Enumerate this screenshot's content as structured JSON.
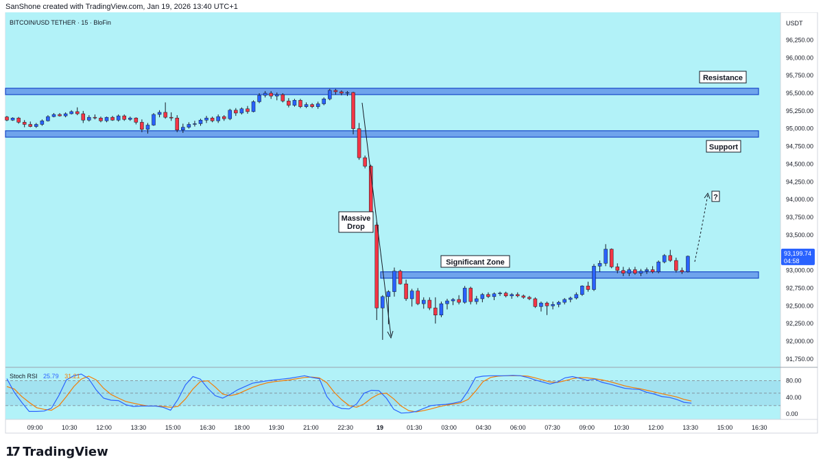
{
  "header_text": "SanShone created with TradingView.com, Jan 19, 2026 13:40 UTC+1",
  "symbol_line": "BITCOIN/USD TETHER · 15 · BloFin",
  "currency": "USDT",
  "footer": {
    "brand": "TradingView"
  },
  "colors": {
    "bg": "#b2f2f8",
    "up": "#2962ff",
    "down": "#f23645",
    "zone_fill": "#6fa4ec",
    "zone_stroke": "#1848c8",
    "rsi_k": "#2962ff",
    "rsi_d": "#f57c00",
    "rsi_band": "#a2e2f0"
  },
  "price_axis": {
    "ticks": [
      "96,250.00",
      "96,000.00",
      "95,750.00",
      "95,500.00",
      "95,250.00",
      "95,000.00",
      "94,750.00",
      "94,500.00",
      "94,250.00",
      "94,000.00",
      "93,750.00",
      "93,500.00",
      "93,250.00",
      "93,000.00",
      "92,750.00",
      "92,500.00",
      "92,250.00",
      "92,000.00",
      "91,750.00"
    ],
    "last_price": "93,199.74",
    "countdown": "04:58"
  },
  "time_axis": {
    "labels": [
      "09:00",
      "10:30",
      "12:00",
      "13:30",
      "15:00",
      "16:30",
      "18:00",
      "19:30",
      "21:00",
      "22:30",
      "19",
      "01:30",
      "03:00",
      "04:30",
      "06:00",
      "07:30",
      "09:00",
      "10:30",
      "12:00",
      "13:30",
      "15:00",
      "16:30"
    ]
  },
  "annotations": {
    "resistance": "Resistance",
    "support": "Support",
    "massive_drop_line1": "Massive",
    "massive_drop_line2": "Drop",
    "significant_zone": "Significant Zone",
    "question": "?"
  },
  "rsi": {
    "label": "Stoch RSI",
    "k_value": "25.79",
    "d_value": "31.21",
    "ticks": [
      "80.00",
      "40.00",
      "0.00"
    ],
    "levels": [
      80,
      50,
      20
    ]
  },
  "chart_data": {
    "type": "candlestick",
    "symbol": "BITCOIN/USD TETHER",
    "timeframe": "15",
    "exchange": "BloFin",
    "ylim": [
      91700,
      96400
    ],
    "zones": [
      {
        "name": "Resistance",
        "low": 95480,
        "high": 95570
      },
      {
        "name": "Support",
        "low": 94880,
        "high": 94970
      },
      {
        "name": "Significant Zone",
        "low": 92890,
        "high": 92980
      }
    ],
    "candles": [
      [
        95165,
        95180,
        95105,
        95120
      ],
      [
        95120,
        95160,
        95110,
        95150
      ],
      [
        95150,
        95165,
        95070,
        95090
      ],
      [
        95090,
        95120,
        95020,
        95060
      ],
      [
        95060,
        95100,
        95020,
        95030
      ],
      [
        95030,
        95080,
        95010,
        95060
      ],
      [
        95060,
        95130,
        95040,
        95110
      ],
      [
        95110,
        95190,
        95100,
        95170
      ],
      [
        95170,
        95220,
        95160,
        95200
      ],
      [
        95200,
        95220,
        95170,
        95180
      ],
      [
        95180,
        95230,
        95160,
        95210
      ],
      [
        95210,
        95260,
        95200,
        95240
      ],
      [
        95240,
        95300,
        95190,
        95210
      ],
      [
        95210,
        95250,
        95080,
        95120
      ],
      [
        95120,
        95190,
        95100,
        95160
      ],
      [
        95160,
        95200,
        95130,
        95150
      ],
      [
        95150,
        95170,
        95090,
        95110
      ],
      [
        95110,
        95170,
        95090,
        95160
      ],
      [
        95160,
        95180,
        95110,
        95120
      ],
      [
        95120,
        95200,
        95100,
        95180
      ],
      [
        95180,
        95200,
        95110,
        95130
      ],
      [
        95130,
        95170,
        95110,
        95150
      ],
      [
        95150,
        95160,
        95060,
        95090
      ],
      [
        95090,
        95130,
        94950,
        94990
      ],
      [
        94990,
        95080,
        94930,
        95050
      ],
      [
        95050,
        95220,
        95040,
        95200
      ],
      [
        95200,
        95260,
        95160,
        95230
      ],
      [
        95230,
        95370,
        95140,
        95160
      ],
      [
        95160,
        95230,
        95110,
        95150
      ],
      [
        95150,
        95190,
        94950,
        94980
      ],
      [
        94980,
        95070,
        94940,
        95020
      ],
      [
        95020,
        95090,
        95000,
        95060
      ],
      [
        95060,
        95110,
        95030,
        95070
      ],
      [
        95070,
        95140,
        95040,
        95120
      ],
      [
        95120,
        95180,
        95080,
        95150
      ],
      [
        95150,
        95170,
        95090,
        95110
      ],
      [
        95110,
        95200,
        95080,
        95170
      ],
      [
        95170,
        95190,
        95110,
        95140
      ],
      [
        95140,
        95280,
        95120,
        95260
      ],
      [
        95260,
        95290,
        95180,
        95220
      ],
      [
        95220,
        95300,
        95200,
        95280
      ],
      [
        95280,
        95320,
        95210,
        95240
      ],
      [
        95240,
        95400,
        95230,
        95380
      ],
      [
        95380,
        95500,
        95360,
        95470
      ],
      [
        95470,
        95530,
        95440,
        95500
      ],
      [
        95500,
        95530,
        95420,
        95460
      ],
      [
        95460,
        95510,
        95400,
        95480
      ],
      [
        95480,
        95500,
        95370,
        95390
      ],
      [
        95390,
        95430,
        95300,
        95330
      ],
      [
        95330,
        95420,
        95310,
        95400
      ],
      [
        95400,
        95420,
        95290,
        95310
      ],
      [
        95310,
        95370,
        95290,
        95340
      ],
      [
        95340,
        95360,
        95290,
        95310
      ],
      [
        95310,
        95380,
        95280,
        95350
      ],
      [
        95350,
        95440,
        95330,
        95420
      ],
      [
        95420,
        95560,
        95400,
        95540
      ],
      [
        95540,
        95560,
        95480,
        95520
      ],
      [
        95520,
        95540,
        95470,
        95500
      ],
      [
        95500,
        95530,
        95460,
        95510
      ],
      [
        95510,
        95520,
        94920,
        95000
      ],
      [
        95000,
        95080,
        94560,
        94590
      ],
      [
        94590,
        94620,
        94440,
        94470
      ],
      [
        94470,
        94490,
        93580,
        93640
      ],
      [
        93640,
        93680,
        92300,
        92470
      ],
      [
        92470,
        92650,
        92020,
        92630
      ],
      [
        92630,
        92720,
        92240,
        92700
      ],
      [
        92700,
        93040,
        92630,
        92990
      ],
      [
        92990,
        93010,
        92800,
        92810
      ],
      [
        92810,
        92870,
        92570,
        92600
      ],
      [
        92600,
        92740,
        92490,
        92710
      ],
      [
        92710,
        92750,
        92510,
        92530
      ],
      [
        92530,
        92620,
        92460,
        92580
      ],
      [
        92580,
        92620,
        92440,
        92470
      ],
      [
        92470,
        92620,
        92250,
        92370
      ],
      [
        92370,
        92560,
        92340,
        92530
      ],
      [
        92530,
        92600,
        92450,
        92570
      ],
      [
        92570,
        92610,
        92510,
        92590
      ],
      [
        92590,
        92650,
        92520,
        92550
      ],
      [
        92550,
        92780,
        92530,
        92750
      ],
      [
        92750,
        92770,
        92520,
        92560
      ],
      [
        92560,
        92640,
        92520,
        92600
      ],
      [
        92600,
        92680,
        92550,
        92660
      ],
      [
        92660,
        92690,
        92610,
        92630
      ],
      [
        92630,
        92690,
        92580,
        92670
      ],
      [
        92670,
        92700,
        92640,
        92680
      ],
      [
        92680,
        92700,
        92620,
        92640
      ],
      [
        92640,
        92680,
        92600,
        92660
      ],
      [
        92660,
        92690,
        92620,
        92640
      ],
      [
        92640,
        92660,
        92600,
        92620
      ],
      [
        92620,
        92640,
        92580,
        92600
      ],
      [
        92600,
        92620,
        92470,
        92490
      ],
      [
        92490,
        92560,
        92420,
        92540
      ],
      [
        92540,
        92560,
        92370,
        92500
      ],
      [
        92500,
        92560,
        92450,
        92520
      ],
      [
        92520,
        92570,
        92480,
        92550
      ],
      [
        92550,
        92610,
        92520,
        92590
      ],
      [
        92590,
        92630,
        92550,
        92610
      ],
      [
        92610,
        92690,
        92590,
        92660
      ],
      [
        92660,
        92790,
        92640,
        92780
      ],
      [
        92780,
        92840,
        92700,
        92730
      ],
      [
        92730,
        93090,
        92710,
        93060
      ],
      [
        93060,
        93140,
        92980,
        93100
      ],
      [
        93100,
        93370,
        93060,
        93300
      ],
      [
        93300,
        93310,
        93030,
        93050
      ],
      [
        93050,
        93100,
        92960,
        93000
      ],
      [
        93000,
        93050,
        92920,
        92960
      ],
      [
        92960,
        93040,
        92920,
        93010
      ],
      [
        93010,
        93050,
        92940,
        92960
      ],
      [
        92960,
        93020,
        92920,
        92990
      ],
      [
        92990,
        93040,
        92950,
        93010
      ],
      [
        93010,
        93060,
        92960,
        92980
      ],
      [
        92980,
        93140,
        92960,
        93120
      ],
      [
        93120,
        93230,
        93100,
        93210
      ],
      [
        93210,
        93290,
        93120,
        93140
      ],
      [
        93140,
        93180,
        92970,
        93000
      ],
      [
        93000,
        93040,
        92950,
        92980
      ],
      [
        92980,
        93210,
        92970,
        93199.74
      ]
    ],
    "stoch_rsi": {
      "k": [
        85,
        52,
        28,
        6,
        6,
        7,
        14,
        45,
        82,
        92,
        96,
        85,
        58,
        38,
        33,
        32,
        22,
        18,
        19,
        19,
        19,
        16,
        9,
        35,
        70,
        90,
        84,
        62,
        44,
        38,
        47,
        58,
        66,
        74,
        77,
        80,
        82,
        84,
        86,
        89,
        92,
        88,
        85,
        42,
        20,
        13,
        12,
        24,
        50,
        57,
        56,
        38,
        11,
        2,
        3,
        6,
        13,
        20,
        22,
        23,
        26,
        30,
        56,
        88,
        91,
        92,
        92,
        92,
        93,
        92,
        88,
        82,
        77,
        72,
        77,
        87,
        90,
        86,
        81,
        84,
        76,
        72,
        67,
        62,
        60,
        59,
        52,
        48,
        42,
        40,
        35,
        28,
        26
      ],
      "d": [
        66,
        60,
        42,
        28,
        15,
        11,
        9,
        20,
        42,
        66,
        84,
        91,
        82,
        62,
        47,
        38,
        30,
        26,
        22,
        19,
        19,
        18,
        16,
        18,
        36,
        60,
        78,
        80,
        65,
        48,
        44,
        48,
        56,
        64,
        70,
        75,
        78,
        80,
        82,
        85,
        88,
        89,
        87,
        75,
        52,
        34,
        20,
        16,
        24,
        38,
        48,
        50,
        36,
        19,
        8,
        5,
        8,
        12,
        17,
        21,
        24,
        27,
        35,
        55,
        78,
        88,
        91,
        92,
        92,
        92,
        91,
        87,
        82,
        77,
        76,
        80,
        85,
        88,
        87,
        85,
        82,
        78,
        73,
        68,
        64,
        61,
        57,
        53,
        49,
        45,
        41,
        35,
        31
      ]
    }
  }
}
